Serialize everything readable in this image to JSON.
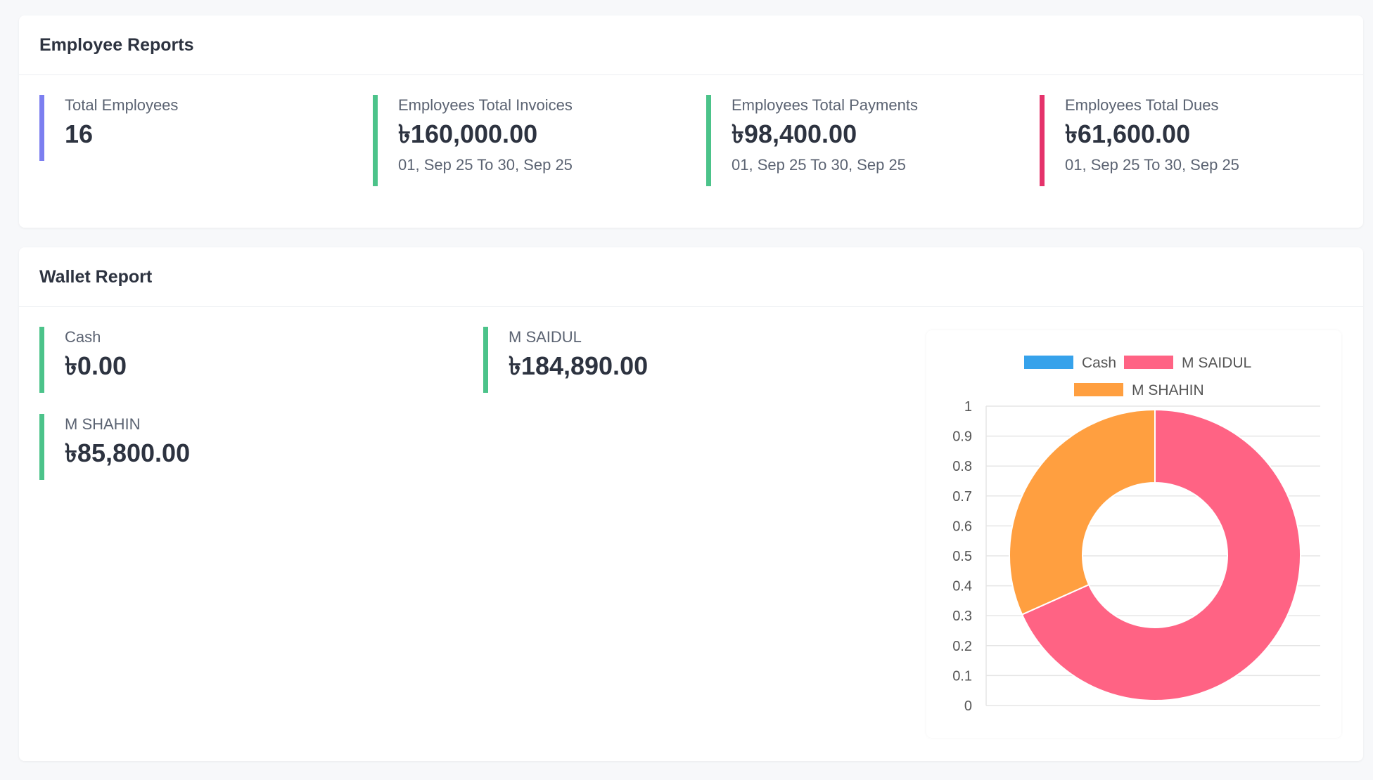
{
  "employee_reports": {
    "title": "Employee Reports",
    "stats": [
      {
        "label": "Total Employees",
        "value": "16",
        "range": "",
        "color": "#7c7ff0"
      },
      {
        "label": "Employees Total Invoices",
        "value": "৳160,000.00",
        "range": "01, Sep 25 To 30, Sep 25",
        "color": "#4cc38a"
      },
      {
        "label": "Employees Total Payments",
        "value": "৳98,400.00",
        "range": "01, Sep 25 To 30, Sep 25",
        "color": "#4cc38a"
      },
      {
        "label": "Employees Total Dues",
        "value": "৳61,600.00",
        "range": "01, Sep 25 To 30, Sep 25",
        "color": "#e5336b"
      }
    ]
  },
  "wallet_report": {
    "title": "Wallet Report",
    "wallets": [
      {
        "label": "Cash",
        "value": "৳0.00",
        "color": "#4cc38a"
      },
      {
        "label": "M SAIDUL",
        "value": "৳184,890.00",
        "color": "#4cc38a"
      },
      {
        "label": "M SHAHIN",
        "value": "৳85,800.00",
        "color": "#4cc38a"
      }
    ]
  },
  "chart_data": {
    "type": "pie",
    "variant": "doughnut",
    "categories": [
      "Cash",
      "M SAIDUL",
      "M SHAHIN"
    ],
    "values": [
      0,
      184890,
      85800
    ],
    "colors": [
      "#36a2eb",
      "#ff6384",
      "#ff9f40"
    ],
    "legend_position": "top",
    "y_ticks": [
      "0",
      "0.1",
      "0.2",
      "0.3",
      "0.4",
      "0.5",
      "0.6",
      "0.7",
      "0.8",
      "0.9",
      "1"
    ],
    "ylim": [
      0,
      1
    ],
    "grid": true
  }
}
